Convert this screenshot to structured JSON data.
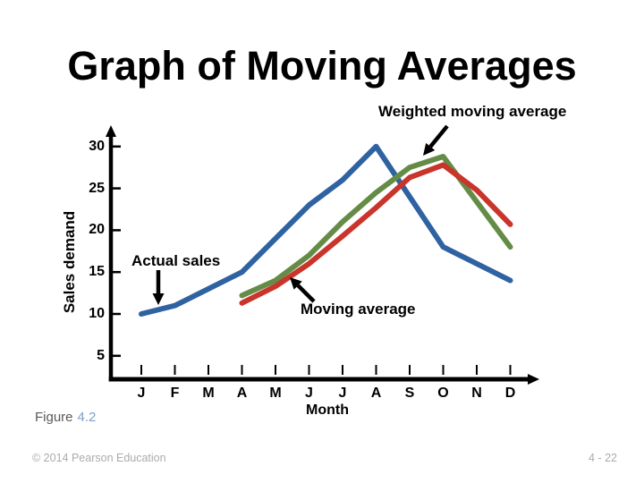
{
  "slide": {
    "title": "Graph of Moving Averages",
    "figure_label": "Figure",
    "figure_number": "4.2",
    "footer_left": "© 2014 Pearson Education",
    "footer_right": "4 - 22"
  },
  "annotations": {
    "weighted_moving_average": "Weighted moving average",
    "actual_sales": "Actual sales",
    "moving_average": "Moving average"
  },
  "colors": {
    "actual_sales_line": "#2E62A1",
    "weighted_moving_average_line": "#648C46",
    "moving_average_line": "#C9342B",
    "axis": "#000000",
    "figure_number_text": "#7F9FC6",
    "caption_gray": "#595959",
    "footer_gray": "#ABABAB"
  },
  "chart_data": {
    "type": "line",
    "title": "",
    "xlabel": "Month",
    "ylabel": "Sales demand",
    "categories": [
      "J",
      "F",
      "M",
      "A",
      "M",
      "J",
      "J",
      "A",
      "S",
      "O",
      "N",
      "D"
    ],
    "y_ticks": [
      5,
      10,
      15,
      20,
      25,
      30
    ],
    "ylim": [
      2,
      32
    ],
    "grid": false,
    "legend_position": "annotated-arrows",
    "series": [
      {
        "name": "Actual sales",
        "color": "#2E62A1",
        "start_index": 0,
        "values": [
          10,
          11,
          13,
          15,
          19,
          23,
          26,
          30,
          24,
          18,
          16,
          14
        ]
      },
      {
        "name": "Weighted moving average",
        "color": "#648C46",
        "start_index": 3,
        "values": [
          12.2,
          14,
          17,
          21,
          24.5,
          27.5,
          28.8,
          23.4,
          18
        ]
      },
      {
        "name": "Moving average",
        "color": "#C9342B",
        "start_index": 3,
        "values": [
          11.3,
          13.3,
          16,
          19.3,
          22.7,
          26.3,
          27.8,
          24.8,
          20.7
        ]
      }
    ]
  }
}
